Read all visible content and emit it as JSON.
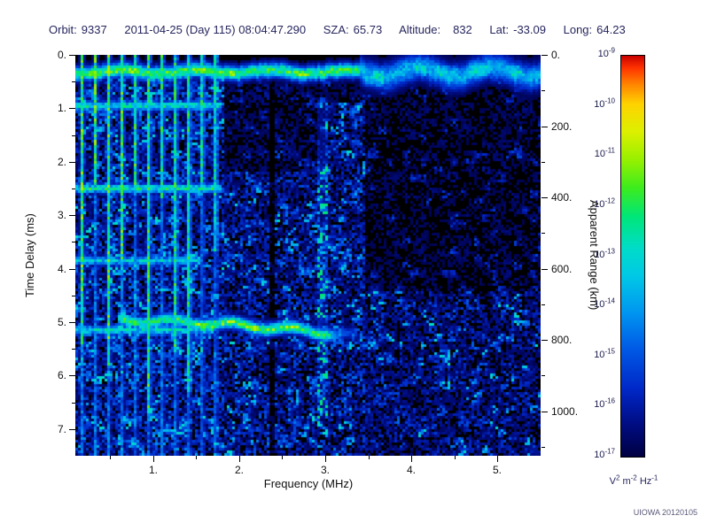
{
  "header": {
    "orbit_label": "Orbit:",
    "orbit_value": "9337",
    "datetime": "2011-04-25 (Day 115) 08:04:47.290",
    "sza_label": "SZA:",
    "sza_value": "65.73",
    "altitude_label": "Altitude:",
    "altitude_value": "832",
    "lat_label": "Lat:",
    "lat_value": "-33.09",
    "long_label": "Long:",
    "long_value": "64.23"
  },
  "credit": "UIOWA 20120105",
  "chart_data": {
    "type": "heatmap",
    "description": "Radar sounder ionogram (spectrogram of received spectral density vs frequency and time delay)",
    "xlabel": "Frequency (MHz)",
    "ylabel_left": "Time Delay (ms)",
    "ylabel_right": "Apparent Range (km)",
    "x_range_mhz": [
      0.1,
      5.5
    ],
    "y_range_ms": [
      0.0,
      7.5
    ],
    "right_range_km": [
      0,
      1125
    ],
    "x_ticks": [
      "1.",
      "2.",
      "3.",
      "4.",
      "5."
    ],
    "x_tick_values": [
      1,
      2,
      3,
      4,
      5
    ],
    "y_ticks": [
      "0.",
      "1.",
      "2.",
      "3.",
      "4.",
      "5.",
      "6.",
      "7."
    ],
    "y_tick_values": [
      0,
      1,
      2,
      3,
      4,
      5,
      6,
      7
    ],
    "right_ticks": [
      "0.",
      "200.",
      "400.",
      "600.",
      "800.",
      "1000."
    ],
    "right_tick_values": [
      0,
      200,
      400,
      600,
      800,
      1000
    ],
    "grid": false,
    "background": "#000000",
    "colorbar": {
      "scale": "log",
      "min": 1e-17,
      "max": 1e-09,
      "exponents": [
        -9,
        -10,
        -11,
        -12,
        -13,
        -14,
        -15,
        -16,
        -17
      ],
      "unit_parts": [
        [
          "V",
          "2"
        ],
        [
          "m",
          "-2"
        ],
        [
          "Hz",
          "-1"
        ]
      ],
      "stops": [
        [
          0.0,
          "#000041"
        ],
        [
          0.08,
          "#000c82"
        ],
        [
          0.17,
          "#0028c8"
        ],
        [
          0.27,
          "#005ae6"
        ],
        [
          0.36,
          "#0096f0"
        ],
        [
          0.45,
          "#00c8e6"
        ],
        [
          0.52,
          "#00dcc8"
        ],
        [
          0.6,
          "#00e678"
        ],
        [
          0.67,
          "#3cec1e"
        ],
        [
          0.74,
          "#96f000"
        ],
        [
          0.81,
          "#dcf000"
        ],
        [
          0.88,
          "#ffd200"
        ],
        [
          0.93,
          "#ff8200"
        ],
        [
          0.97,
          "#ff3200"
        ],
        [
          1.0,
          "#c80000"
        ]
      ]
    },
    "features": {
      "bins": {
        "nx": 175,
        "ny": 151
      },
      "zones": [
        {
          "f": [
            0.1,
            1.82
          ],
          "t": [
            0.25,
            7.5
          ],
          "amp": 0.4,
          "clump": 0.3
        },
        {
          "f": [
            1.82,
            3.45
          ],
          "t": [
            2.2,
            7.5
          ],
          "amp": 0.33,
          "clump": 0.5
        },
        {
          "f": [
            1.82,
            3.45
          ],
          "t": [
            0.45,
            2.2
          ],
          "amp": 0.1,
          "clump": 0.9
        },
        {
          "f": [
            3.0,
            3.45
          ],
          "t": [
            0.9,
            2.2
          ],
          "amp": 0.26,
          "clump": 0.7
        },
        {
          "f": [
            3.45,
            5.5
          ],
          "t": [
            0.5,
            4.4
          ],
          "amp": 0.07,
          "clump": 1.4
        },
        {
          "f": [
            3.45,
            5.5
          ],
          "t": [
            4.4,
            7.5
          ],
          "amp": 0.24,
          "clump": 0.9
        }
      ],
      "harmonics": {
        "f_start": 0.18,
        "spacing": 0.155,
        "f_max": 1.78,
        "amp_top": 0.68,
        "amp_bottom": 0.34,
        "sigma_mhz": 0.016
      },
      "horizontal_echo_lines": [
        {
          "t": 0.95,
          "f_max": 1.8,
          "amp": 0.58
        },
        {
          "t": 2.5,
          "f_max": 1.8,
          "amp": 0.62
        },
        {
          "t": 3.85,
          "f_max": 1.55,
          "amp": 0.5
        },
        {
          "t": 5.15,
          "f_max": 1.7,
          "amp": 0.55
        }
      ],
      "surface_echo": {
        "t": 0.32,
        "sigma_ms": 0.09,
        "amp_low_f": 0.68,
        "amp_high_f": 0.44,
        "f_split": 3.4
      },
      "ionosphere_trace": {
        "f_start": 0.6,
        "f_end": 3.38,
        "t_start": 4.97,
        "t_end": 5.27,
        "amp": 0.62,
        "bright_f": [
          1.5,
          2.7
        ],
        "bright_amp": 0.72
      },
      "dark_column": {
        "f": 2.38,
        "half_width": 0.04,
        "factor": 0.12
      },
      "bright_column": {
        "f": 2.97,
        "half_width": 0.05,
        "t": [
          0.8,
          6.8
        ],
        "factor": 2.0
      }
    }
  }
}
